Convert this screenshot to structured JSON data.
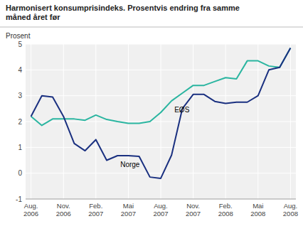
{
  "chart_data": {
    "type": "line",
    "title": "Harmonisert konsumprisindeks. Prosentvis endring fra samme\nmåned året før",
    "y_label": "Prosent",
    "categories": [
      "Aug.\n2006",
      null,
      null,
      "Nov.\n2006",
      null,
      null,
      "Feb.\n2007",
      null,
      null,
      "Mai\n2007",
      null,
      null,
      "Aug.\n2007",
      null,
      null,
      "Nov.\n2007",
      null,
      null,
      "Feb.\n2008",
      null,
      null,
      "Mai\n2008",
      null,
      null,
      "Aug.\n2008"
    ],
    "series": [
      {
        "name": "EØS",
        "color": "#2ab5a0",
        "values": [
          2.2,
          1.85,
          2.1,
          2.1,
          2.1,
          2.05,
          2.25,
          2.08,
          2.0,
          1.93,
          1.93,
          2.0,
          2.35,
          2.8,
          3.1,
          3.4,
          3.4,
          3.55,
          3.7,
          3.65,
          4.35,
          4.35,
          4.15,
          4.1,
          4.85
        ]
      },
      {
        "name": "Norge",
        "color": "#1a3080",
        "values": [
          2.2,
          3.0,
          2.95,
          2.2,
          1.15,
          0.87,
          1.3,
          0.5,
          0.68,
          0.68,
          0.65,
          -0.15,
          -0.2,
          0.7,
          2.5,
          3.05,
          3.05,
          2.78,
          2.7,
          2.75,
          2.75,
          3.0,
          4.0,
          4.1,
          4.85
        ]
      }
    ],
    "ylim": [
      -1,
      5
    ],
    "yticks": [
      -1,
      0,
      1,
      2,
      3,
      4,
      5
    ],
    "grid": true
  }
}
